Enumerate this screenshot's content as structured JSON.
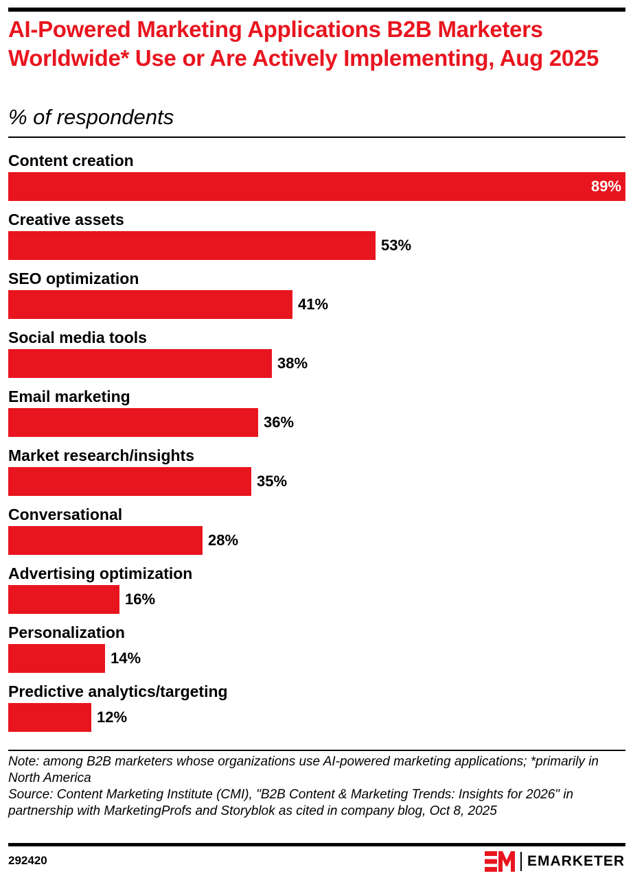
{
  "title": "AI-Powered Marketing Applications B2B Marketers Worldwide* Use or Are Actively Implementing, Aug 2025",
  "subtitle": "% of respondents",
  "colors": {
    "accent": "#e8151f",
    "text": "#000000",
    "inside_label": "#ffffff"
  },
  "chart_data": {
    "type": "bar",
    "orientation": "horizontal",
    "categories": [
      "Content creation",
      "Creative assets",
      "SEO optimization",
      "Social media tools",
      "Email marketing",
      "Market research/insights",
      "Conversational",
      "Advertising optimization",
      "Personalization",
      "Predictive analytics/targeting"
    ],
    "values": [
      89,
      53,
      41,
      38,
      36,
      35,
      28,
      16,
      14,
      12
    ],
    "value_labels": [
      "89%",
      "53%",
      "41%",
      "38%",
      "36%",
      "35%",
      "28%",
      "16%",
      "14%",
      "12%"
    ],
    "title": "AI-Powered Marketing Applications B2B Marketers Worldwide* Use or Are Actively Implementing, Aug 2025",
    "subtitle": "% of respondents",
    "xlim": [
      0,
      89
    ],
    "grid": false
  },
  "footer": {
    "note": "Note: among B2B marketers whose organizations use AI-powered marketing applications; *primarily in North America",
    "source": "Source: Content Marketing Institute (CMI), \"B2B Content & Marketing Trends: Insights for 2026\" in partnership with MarketingProfs and Storyblok as cited in company blog, Oct 8, 2025",
    "chart_id": "292420",
    "brand": "EMARKETER",
    "logo_icon": "em-logo-icon"
  }
}
